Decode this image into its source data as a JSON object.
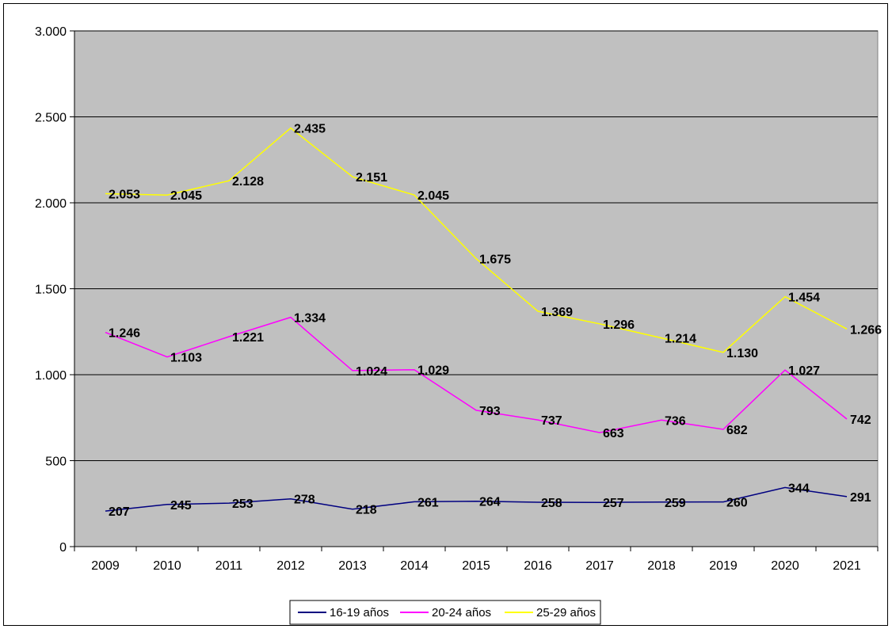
{
  "chart_data": {
    "type": "line",
    "categories": [
      "2009",
      "2010",
      "2011",
      "2012",
      "2013",
      "2014",
      "2015",
      "2016",
      "2017",
      "2018",
      "2019",
      "2020",
      "2021"
    ],
    "ylim": [
      0,
      3000
    ],
    "yticks": [
      0,
      500,
      1000,
      1500,
      2000,
      2500,
      3000
    ],
    "ytick_labels": [
      "0",
      "500",
      "1.000",
      "1.500",
      "2.000",
      "2.500",
      "3.000"
    ],
    "grid": true,
    "legend_position": "bottom",
    "background": "#c0c0c0",
    "series": [
      {
        "name": "16-19 años",
        "color": "#000080",
        "values": [
          207,
          245,
          253,
          278,
          218,
          261,
          264,
          258,
          257,
          259,
          260,
          344,
          291
        ],
        "labels": [
          "207",
          "245",
          "253",
          "278",
          "218",
          "261",
          "264",
          "258",
          "257",
          "259",
          "260",
          "344",
          "291"
        ]
      },
      {
        "name": "20-24 años",
        "color": "#ff00ff",
        "values": [
          1246,
          1103,
          1221,
          1334,
          1024,
          1029,
          793,
          737,
          663,
          736,
          682,
          1027,
          742
        ],
        "labels": [
          "1.246",
          "1.103",
          "1.221",
          "1.334",
          "1.024",
          "1.029",
          "793",
          "737",
          "663",
          "736",
          "682",
          "1.027",
          "742"
        ]
      },
      {
        "name": "25-29 años",
        "color": "#ffff00",
        "values": [
          2053,
          2045,
          2128,
          2435,
          2151,
          2045,
          1675,
          1369,
          1296,
          1214,
          1130,
          1454,
          1266
        ],
        "labels": [
          "2.053",
          "2.045",
          "2.128",
          "2.435",
          "2.151",
          "2.045",
          "1.675",
          "1.369",
          "1.296",
          "1.214",
          "1.130",
          "1.454",
          "1.266"
        ]
      }
    ]
  }
}
